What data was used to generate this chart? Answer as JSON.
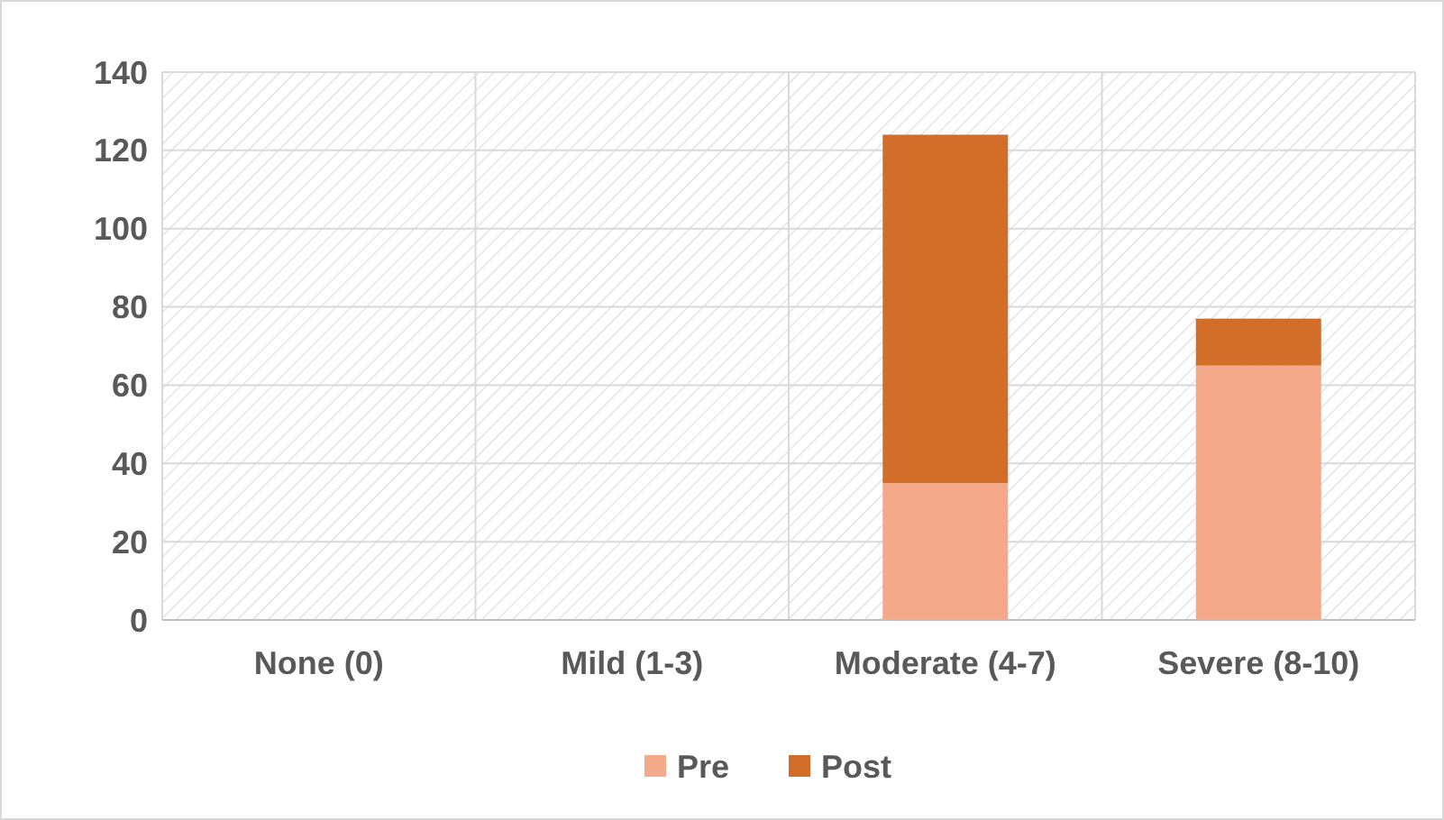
{
  "chart_data": {
    "type": "bar",
    "stacked": true,
    "categories": [
      "None (0)",
      "Mild (1-3)",
      "Moderate (4-7)",
      "Severe (8-10)"
    ],
    "series": [
      {
        "name": "Pre",
        "color": "#f4a98b",
        "values": [
          0,
          0,
          35,
          65
        ]
      },
      {
        "name": "Post",
        "color": "#d36d2a",
        "values": [
          0,
          0,
          89,
          12
        ]
      }
    ],
    "ylim": [
      0,
      140
    ],
    "yticks": [
      0,
      20,
      40,
      60,
      80,
      100,
      120,
      140
    ],
    "grid": true,
    "legend": "bottom"
  }
}
